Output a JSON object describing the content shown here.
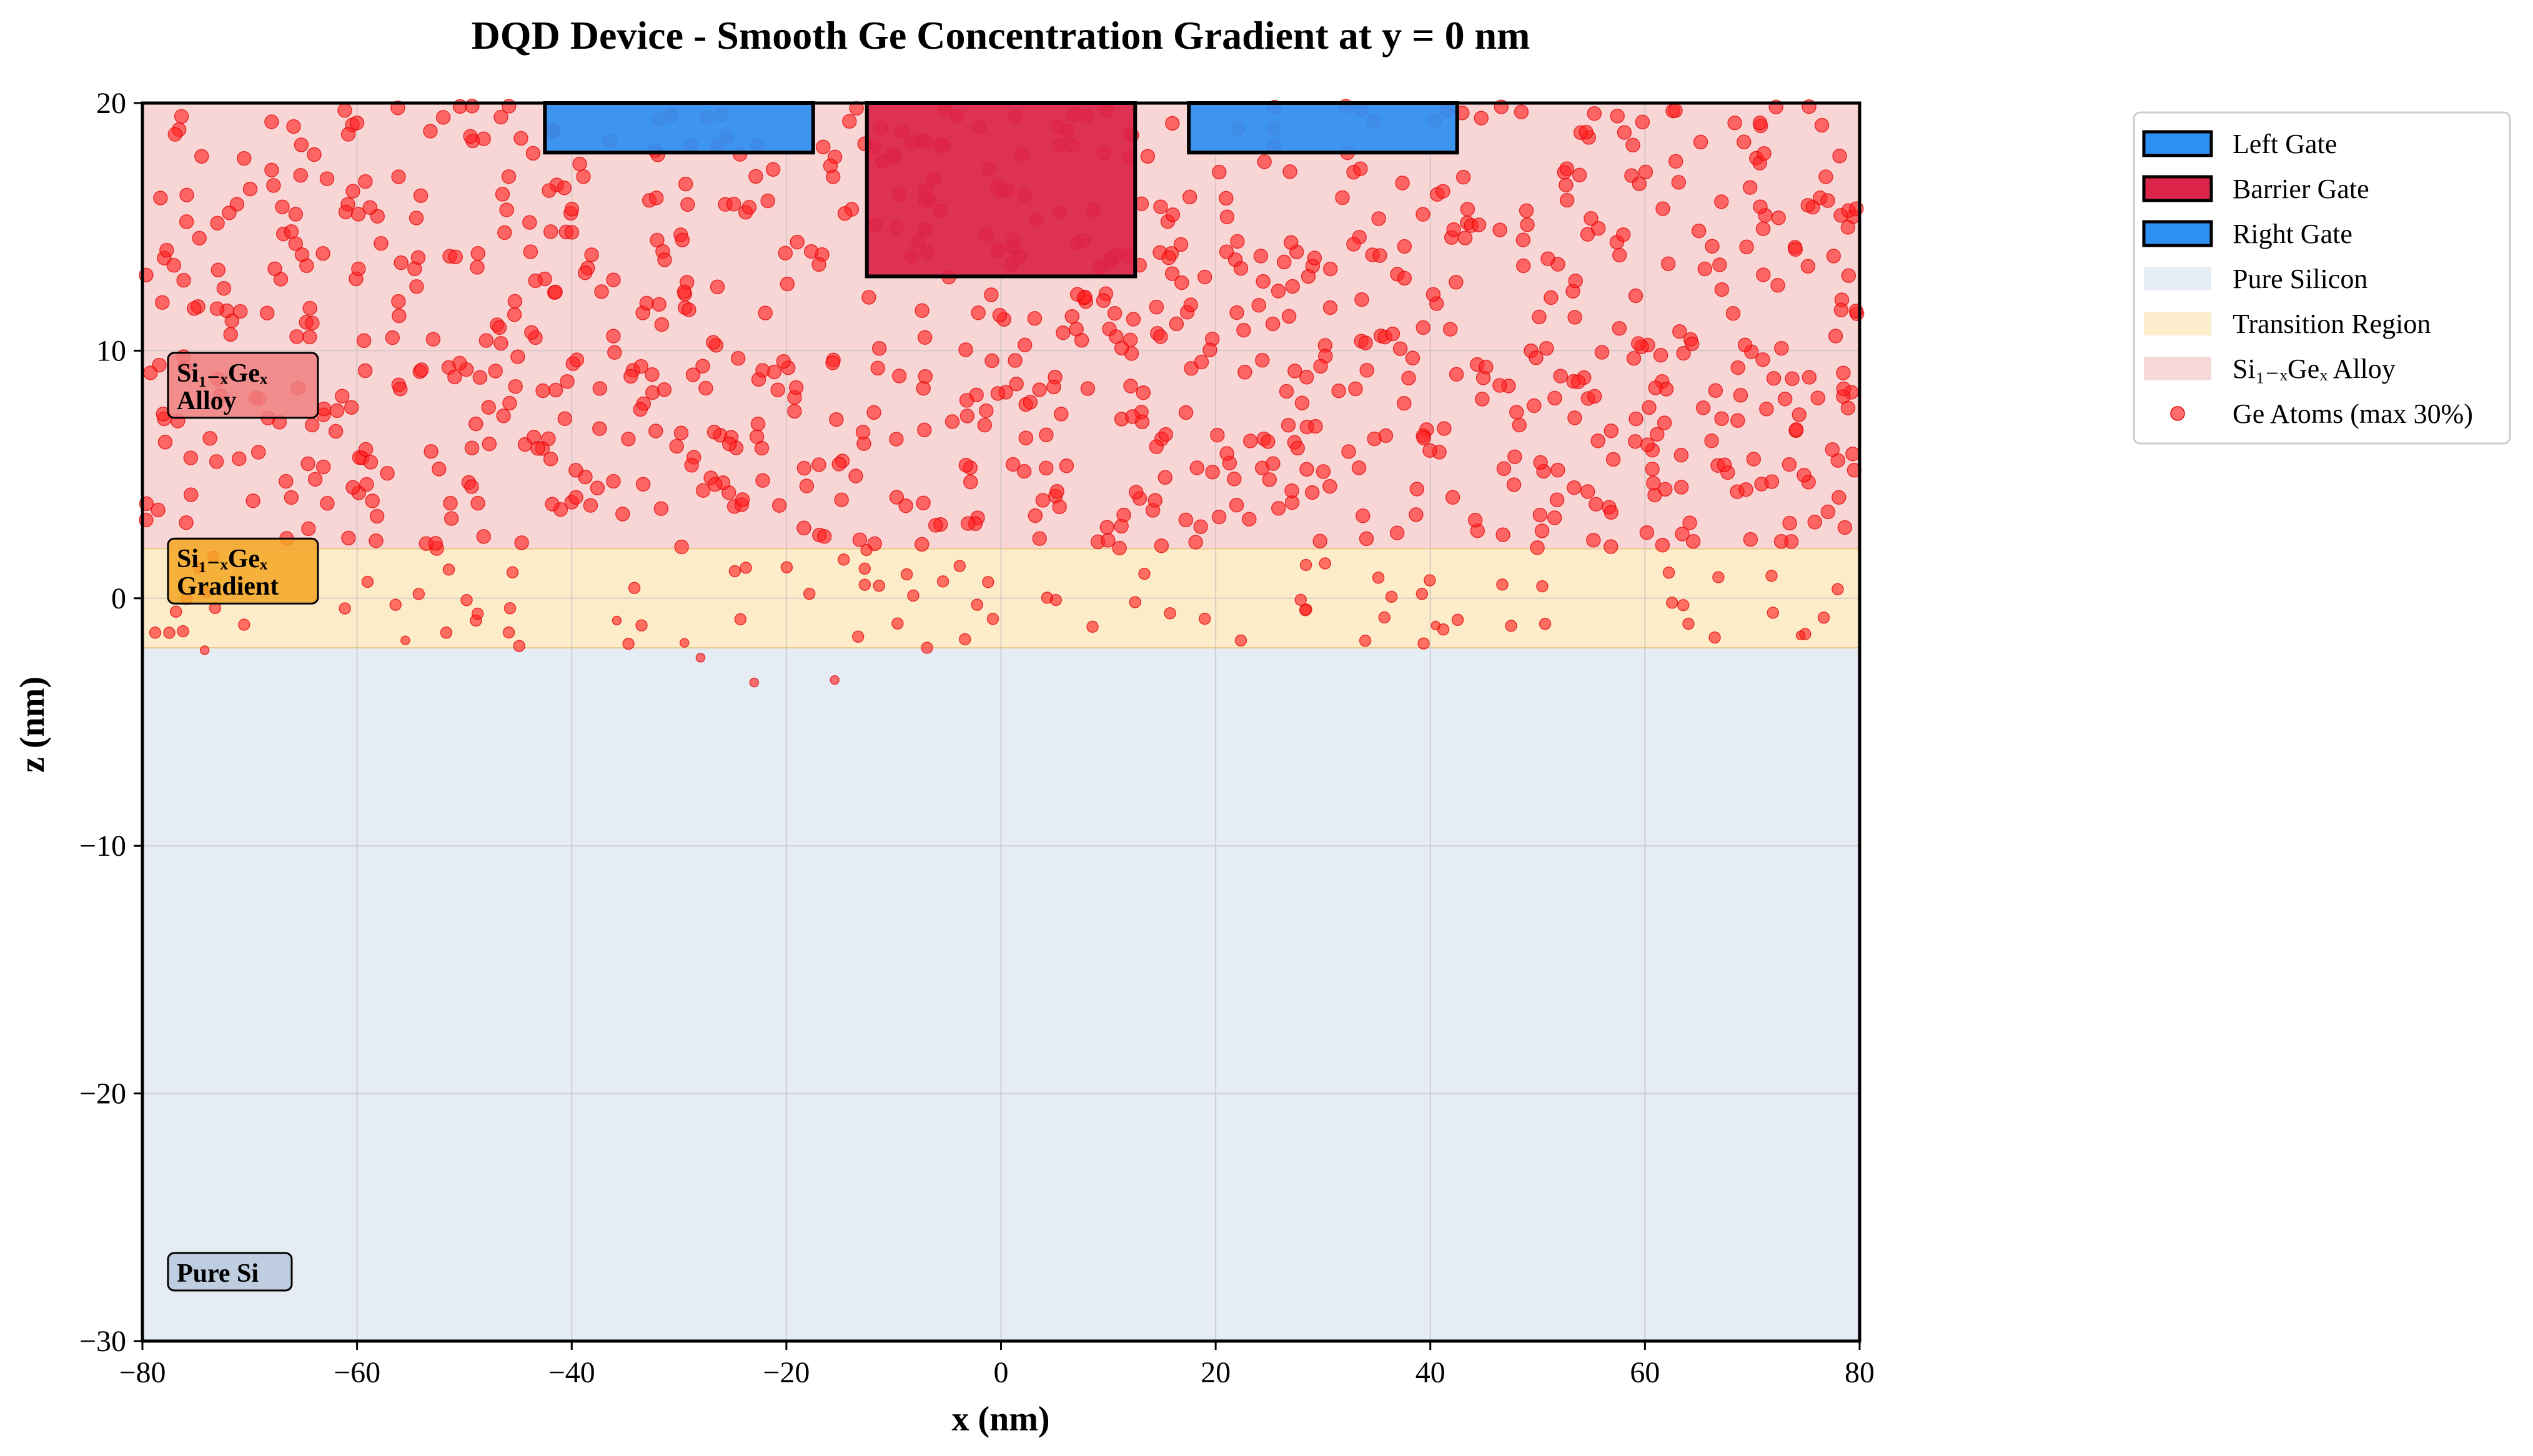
{
  "chart_data": {
    "type": "scatter",
    "title": "DQD Device - Smooth Ge Concentration Gradient at y = 0 nm",
    "xlabel": "x (nm)",
    "ylabel": "z (nm)",
    "xlim": [
      -80,
      80
    ],
    "ylim": [
      -30,
      20
    ],
    "xticks": [
      -80,
      -60,
      -40,
      -20,
      0,
      20,
      40,
      60,
      80
    ],
    "yticks": [
      -30,
      -20,
      -10,
      0,
      10,
      20
    ],
    "grid": true,
    "legend_position": "outside-right",
    "regions": [
      {
        "name": "Pure Silicon",
        "z_range": [
          -30,
          -2
        ],
        "color": "#e6ecf4"
      },
      {
        "name": "Transition Region",
        "z_range": [
          -2,
          2
        ],
        "color": "#fcecca"
      },
      {
        "name": "Si_{1-x}Ge_x Alloy",
        "z_range": [
          2,
          20
        ],
        "color": "#f9d6d6"
      }
    ],
    "gates": [
      {
        "name": "Left Gate",
        "x_range": [
          -42.5,
          -17.5
        ],
        "z_range": [
          18,
          20
        ],
        "color": "#2e8ff2"
      },
      {
        "name": "Barrier Gate",
        "x_range": [
          -12.5,
          12.5
        ],
        "z_range": [
          13,
          20
        ],
        "color": "#db2449"
      },
      {
        "name": "Right Gate",
        "x_range": [
          17.5,
          42.5
        ],
        "z_range": [
          18,
          20
        ],
        "color": "#2e8ff2"
      }
    ],
    "annotations": [
      {
        "lines": [
          "Si₁₋ₓGeₓ",
          "Alloy"
        ],
        "x": -77.5,
        "z": 8.6,
        "color": "#f08080"
      },
      {
        "lines": [
          "Si₁₋ₓGeₓ",
          "Gradient"
        ],
        "x": -77.5,
        "z": 1.1,
        "color": "#f5a623"
      },
      {
        "lines": [
          "Pure Si"
        ],
        "x": -77.5,
        "z": -27.2,
        "color": "#b7c8dd"
      }
    ],
    "series": [
      {
        "name": "Ge Atoms (max 30%)",
        "color": "#ff2020",
        "note": "approx. 1000 randomly placed Ge atoms; density highest in the alloy (z 2 to 20 nm), sparse in the transition region, a few just below it",
        "alloy_count": 900,
        "alloy_z_range": [
          2,
          20
        ],
        "transition_count": 85,
        "transition_z_range": [
          -2,
          2
        ],
        "below_points": [
          {
            "x": -74.2,
            "z": -2.1
          },
          {
            "x": -28.0,
            "z": -2.4
          },
          {
            "x": -23.0,
            "z": -3.4
          },
          {
            "x": -15.5,
            "z": -3.3
          },
          {
            "x": -29.5,
            "z": -1.8
          },
          {
            "x": -55.5,
            "z": -1.7
          },
          {
            "x": 74.5,
            "z": -1.5
          },
          {
            "x": -35.8,
            "z": -0.9
          },
          {
            "x": 40.5,
            "z": -1.1
          }
        ],
        "x_range": [
          -80,
          80
        ]
      }
    ]
  },
  "legend": {
    "items": [
      {
        "label": "Left Gate",
        "kind": "patch",
        "color": "#2e8ff2",
        "border": "#000000"
      },
      {
        "label": "Barrier Gate",
        "kind": "patch",
        "color": "#db2449",
        "border": "#000000"
      },
      {
        "label": "Right Gate",
        "kind": "patch",
        "color": "#2e8ff2",
        "border": "#000000"
      },
      {
        "label": "Pure Silicon",
        "kind": "patch",
        "color": "#e6ecf4",
        "border": "none"
      },
      {
        "label": "Transition Region",
        "kind": "patch",
        "color": "#fcecca",
        "border": "none"
      },
      {
        "label": "Si₁₋ₓGeₓ Alloy",
        "kind": "patch",
        "color": "#f9d6d6",
        "border": "none"
      },
      {
        "label": "Ge Atoms (max 30%)",
        "kind": "marker",
        "color": "#ff2020"
      }
    ]
  }
}
